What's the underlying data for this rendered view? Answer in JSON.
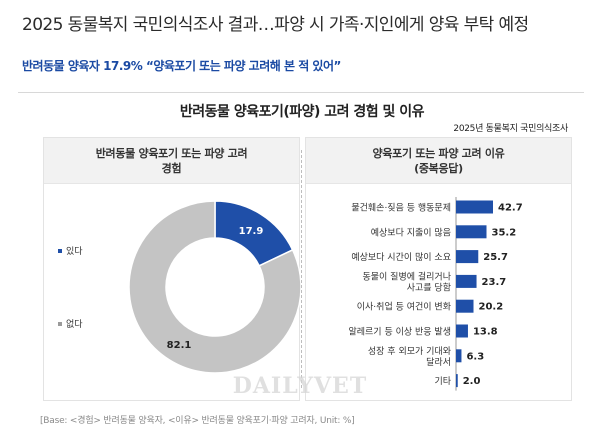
{
  "headline": "2025 동물복지 국민의식조사 결과…파양 시 가족·지인에게 양육 부탁 예정",
  "subhead": "반려동물 양육자 17.9% “양육포기 또는 파양 고려해 본 적 있어”",
  "figure_title": "반려동물 양육포기(파양) 고려 경험 및 이유",
  "source_label": "2025년 동물복지 국민의식조사",
  "left_panel": {
    "title_line1": "반려동물 양육포기 또는 파양 고려",
    "title_line2": "경험"
  },
  "right_panel": {
    "title_line1": "양육포기 또는 파양 고려 이유",
    "title_line2": "(중복응답)"
  },
  "footer_note": "[Base: <경험> 반려동물 양육자, <이유> 반려동물 양육포기·파양 고려자, Unit: %]",
  "watermark_text": "DAILYVET",
  "colors": {
    "primary_blue": "#1f4fa8",
    "grey": "#c4c4c4",
    "subhead_blue": "#1b4aa3"
  },
  "chart_data": [
    {
      "type": "pie",
      "variant": "donut",
      "categories": [
        "있다",
        "없다"
      ],
      "values": [
        17.9,
        82.1
      ],
      "colors": [
        "#1f4fa8",
        "#c4c4c4"
      ],
      "legend_position": "left"
    },
    {
      "type": "bar",
      "orientation": "horizontal",
      "categories": [
        [
          "물건훼손·짖음 등 행동문제"
        ],
        [
          "예상보다 지출이 많음"
        ],
        [
          "예상보다 시간이 많이 소요"
        ],
        [
          "동물이 질병에 걸리거나",
          "사고를 당함"
        ],
        [
          "이사·취업 등 여건이 변화"
        ],
        [
          "알레르기 등 이상 반응 발생"
        ],
        [
          "성장 후 외모가 기대와",
          "달라서"
        ],
        [
          "기타"
        ]
      ],
      "values": [
        42.7,
        35.2,
        25.7,
        23.7,
        20.2,
        13.8,
        6.3,
        2.0
      ],
      "value_labels": [
        "42.7",
        "35.2",
        "25.7",
        "23.7",
        "20.2",
        "13.8",
        "6.3",
        "2.0"
      ],
      "color": "#1f4fa8",
      "xlim": [
        0,
        50
      ],
      "grid": false
    }
  ]
}
